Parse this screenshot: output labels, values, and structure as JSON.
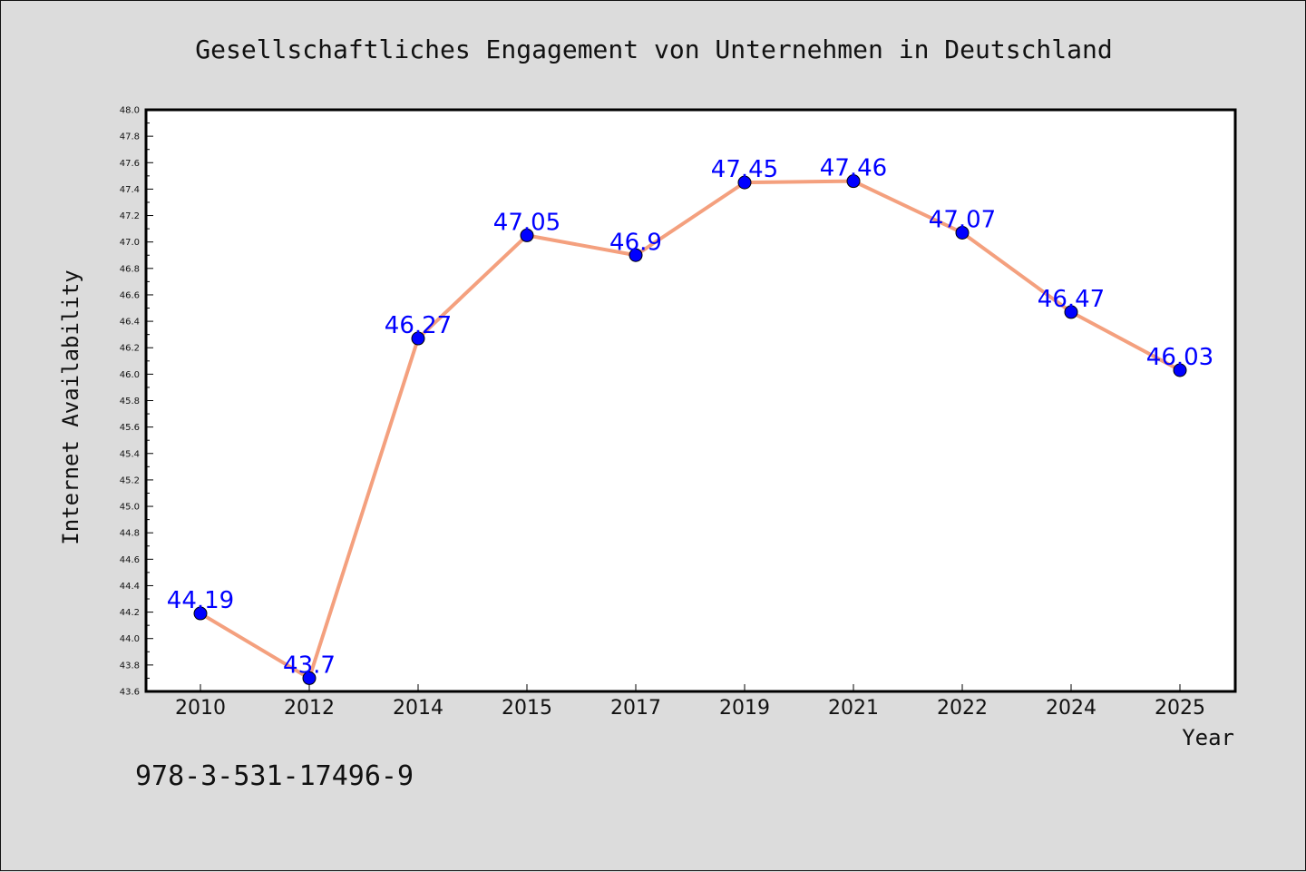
{
  "chart_data": {
    "type": "line",
    "title": "Gesellschaftliches Engagement von Unternehmen in Deutschland",
    "xlabel": "Year",
    "ylabel": "Internet Availability",
    "categories": [
      "2010",
      "2012",
      "2014",
      "2015",
      "2017",
      "2019",
      "2021",
      "2022",
      "2024",
      "2025"
    ],
    "series": [
      {
        "values": [
          44.19,
          43.7,
          46.27,
          47.05,
          46.9,
          47.45,
          47.46,
          47.07,
          46.47,
          46.03
        ],
        "data_labels": [
          "44.19",
          "43.7",
          "46.27",
          "47.05",
          "46.9",
          "47.45",
          "47.46",
          "47.07",
          "46.47",
          "46.03"
        ],
        "line_color": "#f4a07e",
        "marker_color": "#0000ff"
      }
    ],
    "ylim": [
      43.6,
      48.0
    ],
    "yticks": [
      "43.6",
      "43.8",
      "44.0",
      "44.2",
      "44.4",
      "44.6",
      "44.8",
      "45.0",
      "45.2",
      "45.4",
      "45.6",
      "45.8",
      "46.0",
      "46.2",
      "46.4",
      "46.6",
      "46.8",
      "47.0",
      "47.2",
      "47.4",
      "47.6",
      "47.8",
      "48.0"
    ],
    "grid": false,
    "legend": "none"
  },
  "footer": {
    "isbn": "978-3-531-17496-9"
  },
  "colors": {
    "background": "#dcdcdc",
    "plot_area": "#ffffff",
    "line": "#f4a07e",
    "marker": "#0000ff",
    "data_label": "#0000ff"
  }
}
